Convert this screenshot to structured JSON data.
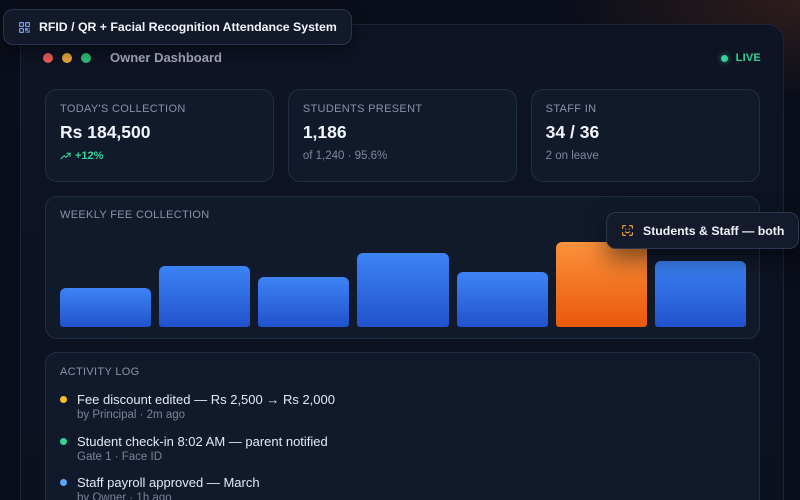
{
  "app_badge": {
    "icon": "qr-code-icon",
    "title": "RFID / QR + Facial Recognition Attendance System"
  },
  "window": {
    "control_colors": [
      "#ec5f5b",
      "#eaa93c",
      "#2fc27a"
    ],
    "title": "Owner Dashboard",
    "status": {
      "label": "LIVE",
      "color": "#34d399"
    }
  },
  "stats": [
    {
      "label": "TODAY'S COLLECTION",
      "value": "Rs 184,500",
      "trend_icon": "trending-up-icon",
      "sub": "+12%",
      "sub_color": "#34d399"
    },
    {
      "label": "STUDENTS PRESENT",
      "value": "1,186",
      "sub": "of 1,240 · 95.6%"
    },
    {
      "label": "STAFF IN",
      "value": "34 / 36",
      "sub": "2 on leave"
    }
  ],
  "chart_data": {
    "type": "bar",
    "title": "WEEKLY FEE COLLECTION",
    "series": [
      {
        "values": [
          0.42,
          0.66,
          0.54,
          0.8,
          0.6,
          0.92,
          0.72
        ],
        "gradient": [
          "#3d84f6",
          "#2152cc"
        ]
      }
    ],
    "highlight": {
      "index": 5,
      "gradient": [
        "#fb923c",
        "#ea580c"
      ]
    },
    "grid": false
  },
  "recognition_badge": {
    "icon": "face-scan-icon",
    "text": "Students & Staff — both"
  },
  "activity_log": {
    "label": "ACTIVITY LOG",
    "items": [
      {
        "title": "Fee discount edited — Rs 2,500 → Rs 2,000",
        "meta": "by Principal · 2m ago",
        "dot_color": "#fbbf24"
      },
      {
        "title": "Student check-in 8:02 AM — parent notified",
        "meta": "Gate 1 · Face ID",
        "dot_color": "#34d399"
      },
      {
        "title": "Staff payroll approved — March",
        "meta": "by Owner · 1h ago",
        "dot_color": "#60a5fa"
      }
    ]
  }
}
